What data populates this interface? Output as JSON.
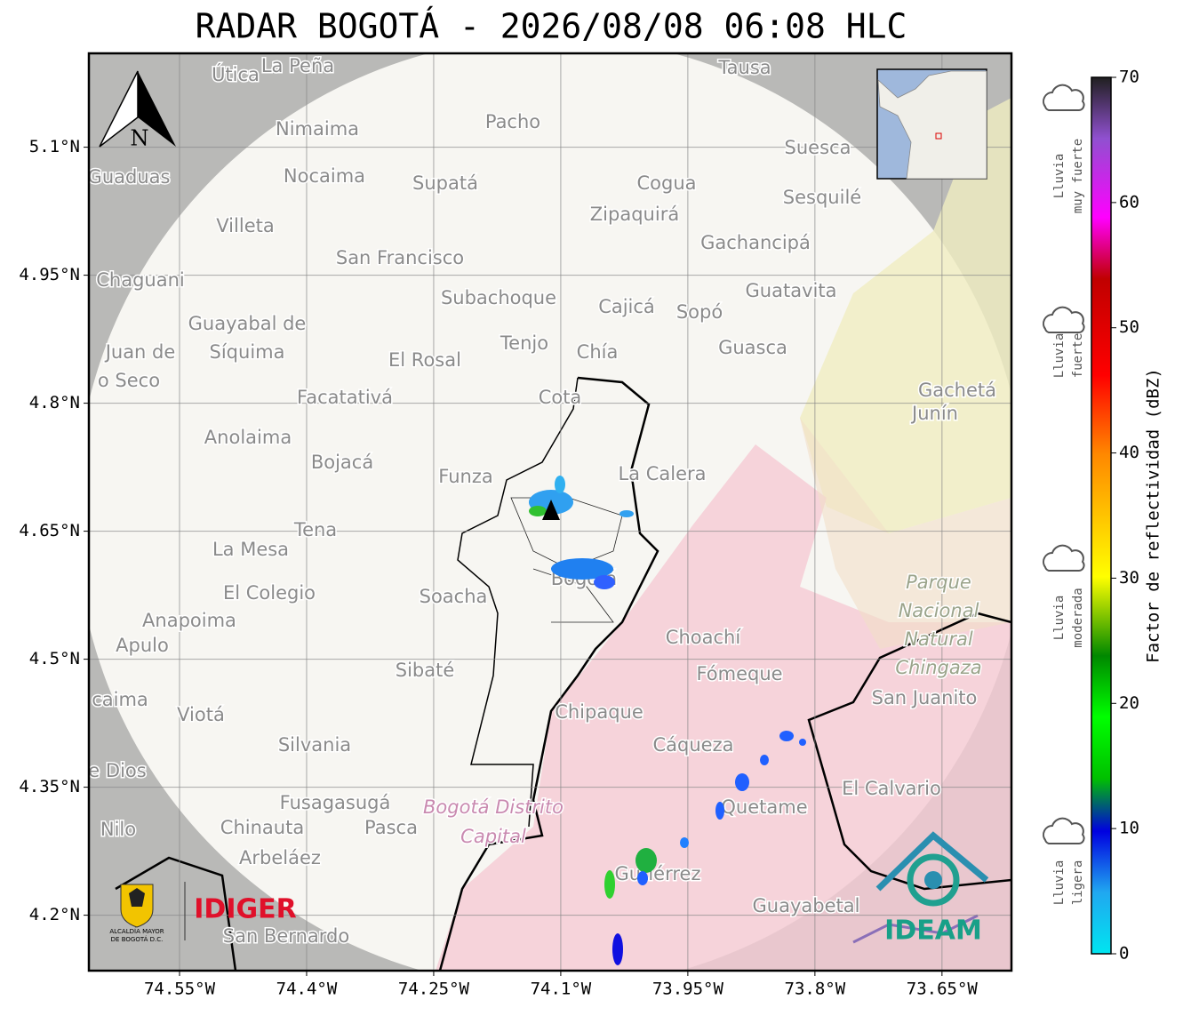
{
  "title": "RADAR BOGOTÁ - 2026/08/08 06:08 HLC",
  "map": {
    "xlim": [
      -74.657,
      -73.568
    ],
    "ylim": [
      4.135,
      5.21
    ],
    "xticks": [
      {
        "value": -74.55,
        "label": "74.55°W"
      },
      {
        "value": -74.4,
        "label": "74.4°W"
      },
      {
        "value": -74.25,
        "label": "74.25°W"
      },
      {
        "value": -74.1,
        "label": "74.1°W"
      },
      {
        "value": -73.95,
        "label": "73.95°W"
      },
      {
        "value": -73.8,
        "label": "73.8°W"
      },
      {
        "value": -73.65,
        "label": "73.65°W"
      }
    ],
    "yticks": [
      {
        "value": 5.1,
        "label": "5.1°N"
      },
      {
        "value": 4.95,
        "label": "4.95°N"
      },
      {
        "value": 4.8,
        "label": "4.8°N"
      },
      {
        "value": 4.65,
        "label": "4.65°N"
      },
      {
        "value": 4.5,
        "label": "4.5°N"
      },
      {
        "value": 4.35,
        "label": "4.35°N"
      },
      {
        "value": 4.2,
        "label": "4.2°N"
      }
    ],
    "north_label": "N",
    "places": [
      "Útica",
      "La Peña",
      "Tausa",
      "Pacho",
      "Nimaima",
      "Guaduas",
      "Nocaima",
      "Supatá",
      "Cogua",
      "Suesca",
      "Sesquilé",
      "Villeta",
      "Zipaquirá",
      "Gachancipá",
      "San Francisco",
      "Chaguani",
      "Guatavita",
      "Subachoque",
      "Cajicá",
      "Sopó",
      "Guayabal de",
      "Síquima",
      "Juan de",
      "o Seco",
      "Tenjo",
      "Chía",
      "El Rosal",
      "Guasca",
      "Facatativá",
      "Cota",
      "Gachetá",
      "Junín",
      "Anolaima",
      "Bojacá",
      "Funza",
      "La Calera",
      "Tena",
      "La Mesa",
      "Bogotá",
      "Soacha",
      "El Colegio",
      "Parque",
      "Nacional",
      "Natural",
      "Chingaza",
      "Anapoima",
      "Apulo",
      "Choachí",
      "Fómeque",
      "Sibaté",
      "San Juanito",
      "caima",
      "Viotá",
      "Chipaque",
      "Silvania",
      "Cáqueza",
      "e Dios",
      "El Calvario",
      "Fusagasugá",
      "Bogotá Distrito",
      "Capital",
      "Quetame",
      "Nilo",
      "Chinauta",
      "Pasca",
      "Arbeláez",
      "Gutiérrez",
      "Guayabetal",
      "San Bernardo"
    ]
  },
  "colorbar": {
    "label": "Factor de reflectividad (dBZ)",
    "lim": [
      0,
      70
    ],
    "ticks": [
      0,
      10,
      20,
      30,
      40,
      50,
      60,
      70
    ],
    "categories": [
      {
        "lines": [
          "Lluvia",
          "muy fuerte"
        ]
      },
      {
        "lines": [
          "Lluvia",
          "fuerte"
        ]
      },
      {
        "lines": [
          "Lluvia",
          "moderada"
        ]
      },
      {
        "lines": [
          "Lluvia",
          "ligera"
        ]
      }
    ]
  },
  "logos": {
    "alcaldia": [
      "ALCALDÍA MAYOR",
      "DE BOGOTÁ D.C."
    ],
    "idiger": "IDIGER",
    "ideam": "IDEAM"
  }
}
